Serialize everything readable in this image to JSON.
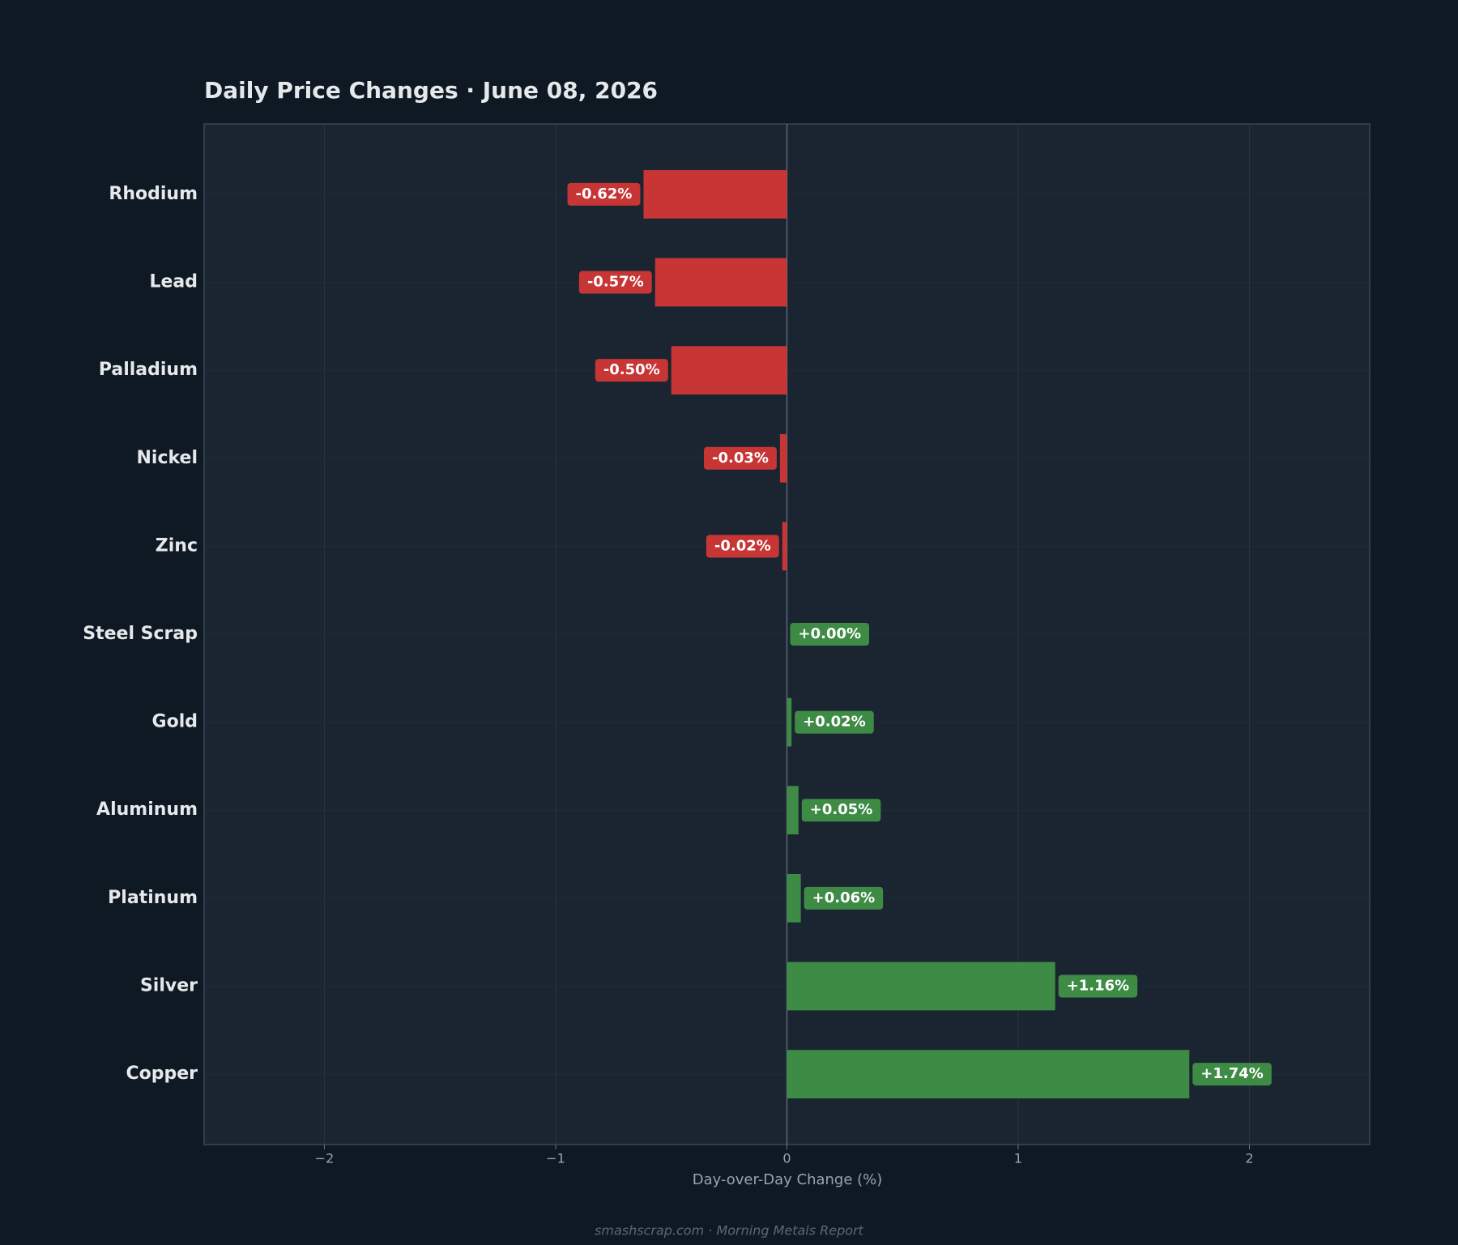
{
  "chart_data": {
    "type": "barh",
    "title": "Daily Price Changes  ·  June 08, 2026",
    "xlabel": "Day-over-Day Change (%)",
    "footer": "smashscrap.com  ·  Morning Metals Report",
    "categories": [
      "Rhodium",
      "Lead",
      "Palladium",
      "Nickel",
      "Zinc",
      "Steel Scrap",
      "Gold",
      "Aluminum",
      "Platinum",
      "Silver",
      "Copper"
    ],
    "values": [
      -0.62,
      -0.57,
      -0.5,
      -0.03,
      -0.02,
      0.0,
      0.02,
      0.05,
      0.06,
      1.16,
      1.74
    ],
    "value_labels": [
      "-0.62%",
      "-0.57%",
      "-0.50%",
      "-0.03%",
      "-0.02%",
      "+0.00%",
      "+0.02%",
      "+0.05%",
      "+0.06%",
      "+1.16%",
      "+1.74%"
    ],
    "negative_color": "#c73535",
    "positive_color": "#3d8b45",
    "xlim": [
      -2.52,
      2.52
    ],
    "xticks": [
      {
        "value": -2,
        "label": "−2"
      },
      {
        "value": -1,
        "label": "−1"
      },
      0,
      1,
      2
    ],
    "grid": true
  }
}
